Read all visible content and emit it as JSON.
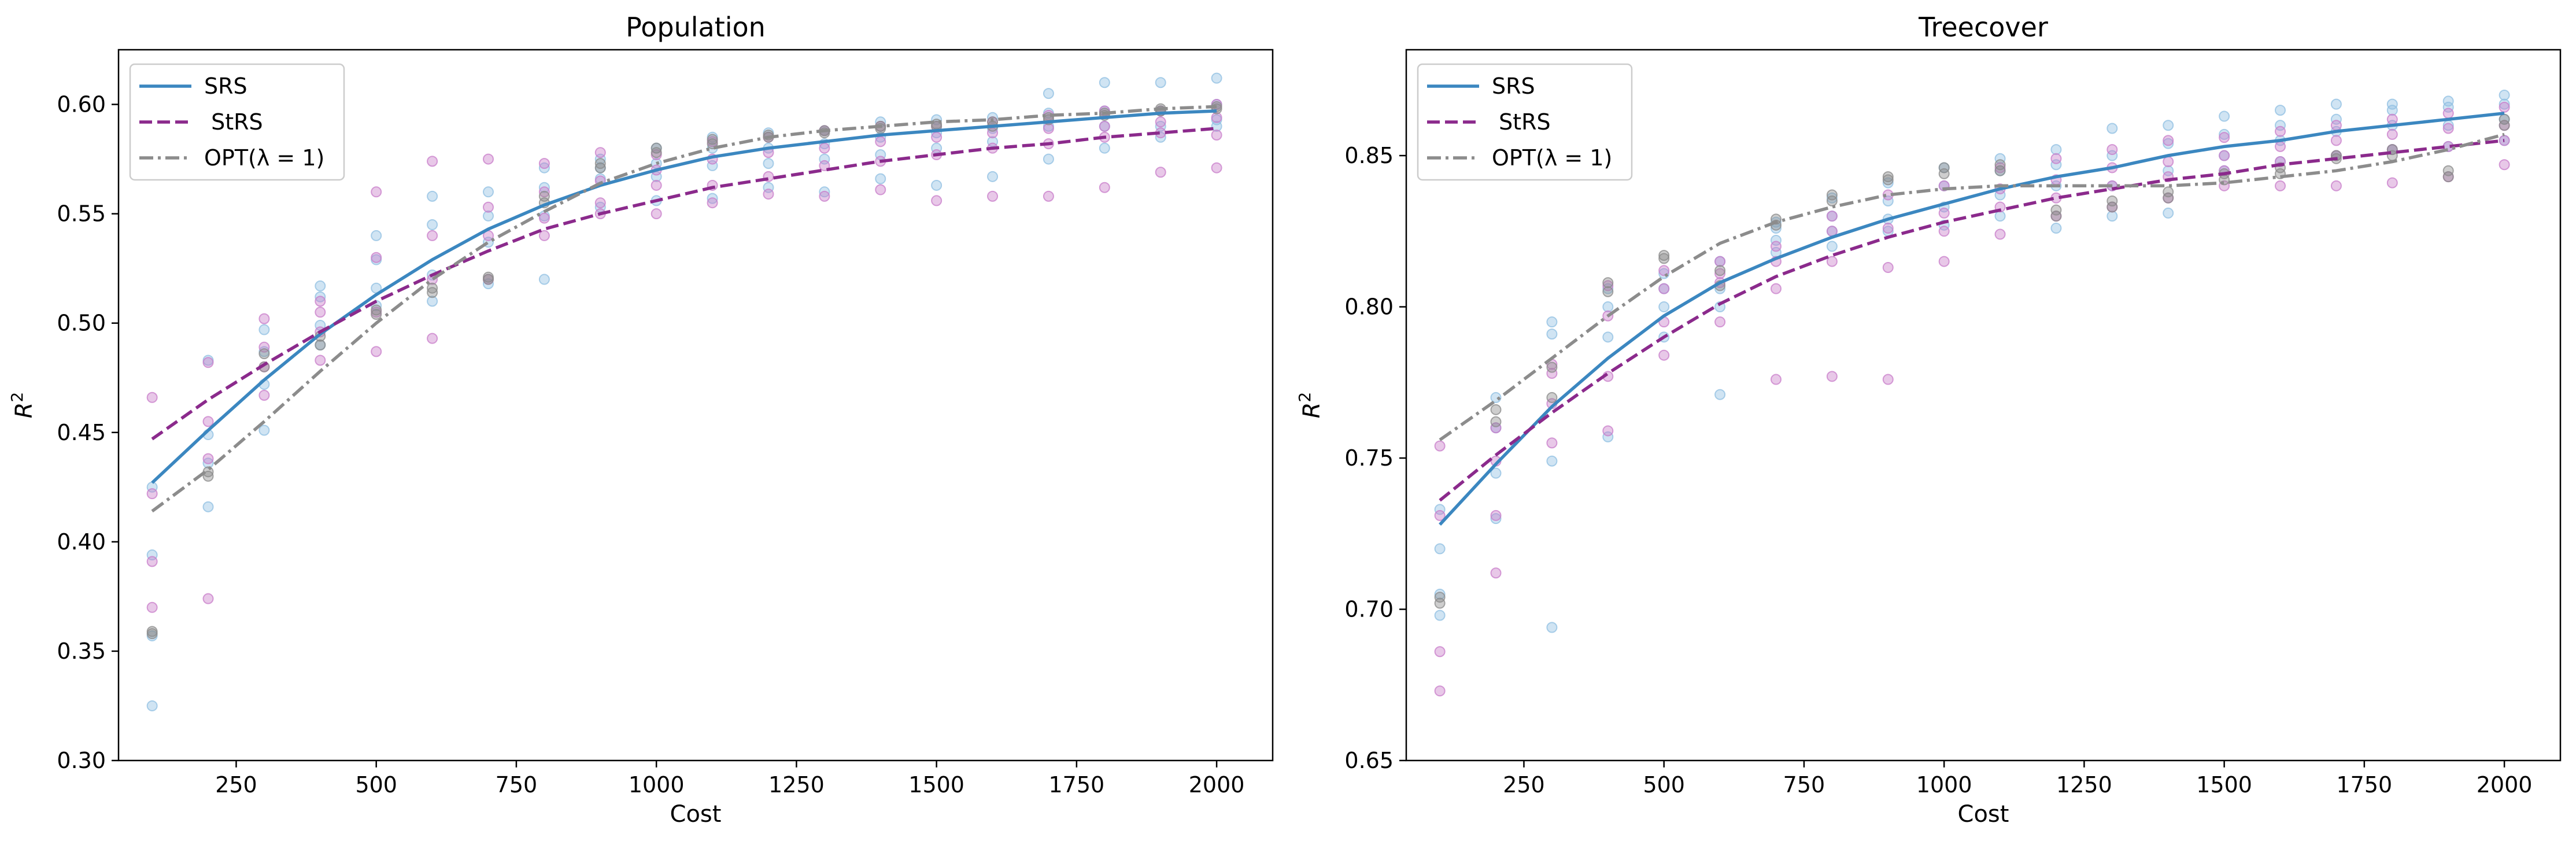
{
  "chart_data": [
    {
      "type": "scatter",
      "title": "Population",
      "xlabel": "Cost",
      "ylabel_base": "R",
      "ylabel_sup": "2",
      "xlim": [
        40,
        2100
      ],
      "ylim": [
        0.3,
        0.625
      ],
      "xticks": [
        250,
        500,
        750,
        1000,
        1250,
        1500,
        1750,
        2000
      ],
      "xtick_labels": [
        "250",
        "500",
        "750",
        "1000",
        "1250",
        "1500",
        "1750",
        "2000"
      ],
      "yticks": [
        0.3,
        0.35,
        0.4,
        0.45,
        0.5,
        0.55,
        0.6
      ],
      "ytick_labels": [
        "0.30",
        "0.35",
        "0.40",
        "0.45",
        "0.50",
        "0.55",
        "0.60"
      ],
      "legend_position": "top-left",
      "grid": false,
      "series": [
        {
          "name": "SRS",
          "style": "solid",
          "color": "#3b87c0",
          "point_color": "#8fbfe2",
          "x": [
            100,
            200,
            300,
            400,
            500,
            600,
            700,
            800,
            900,
            1000,
            1100,
            1200,
            1300,
            1400,
            1500,
            1600,
            1700,
            1800,
            1900,
            2000
          ],
          "fit": [
            0.427,
            0.451,
            0.474,
            0.495,
            0.513,
            0.529,
            0.543,
            0.554,
            0.563,
            0.57,
            0.576,
            0.58,
            0.583,
            0.586,
            0.588,
            0.59,
            0.592,
            0.594,
            0.596,
            0.597
          ],
          "points": [
            [
              0.325,
              0.357,
              0.394,
              0.425
            ],
            [
              0.416,
              0.436,
              0.449,
              0.483
            ],
            [
              0.451,
              0.472,
              0.487,
              0.497
            ],
            [
              0.49,
              0.499,
              0.512,
              0.517
            ],
            [
              0.508,
              0.516,
              0.529,
              0.54
            ],
            [
              0.51,
              0.522,
              0.545,
              0.558
            ],
            [
              0.518,
              0.537,
              0.549,
              0.56
            ],
            [
              0.52,
              0.549,
              0.562,
              0.571
            ],
            [
              0.553,
              0.566,
              0.571,
              0.575
            ],
            [
              0.556,
              0.567,
              0.573,
              0.58
            ],
            [
              0.557,
              0.572,
              0.58,
              0.585
            ],
            [
              0.562,
              0.573,
              0.58,
              0.587
            ],
            [
              0.56,
              0.575,
              0.582,
              0.588
            ],
            [
              0.566,
              0.577,
              0.585,
              0.592
            ],
            [
              0.563,
              0.58,
              0.587,
              0.593
            ],
            [
              0.567,
              0.583,
              0.589,
              0.594
            ],
            [
              0.575,
              0.59,
              0.596,
              0.605
            ],
            [
              0.58,
              0.59,
              0.597,
              0.61
            ],
            [
              0.585,
              0.59,
              0.597,
              0.61
            ],
            [
              0.59,
              0.593,
              0.6,
              0.612
            ]
          ]
        },
        {
          "name": " StRS",
          "style": "dashed",
          "color": "#8b2a8c",
          "point_color": "#c87cc9",
          "x": [
            100,
            200,
            300,
            400,
            500,
            600,
            700,
            800,
            900,
            1000,
            1100,
            1200,
            1300,
            1400,
            1500,
            1600,
            1700,
            1800,
            1900,
            2000
          ],
          "fit": [
            0.447,
            0.465,
            0.481,
            0.496,
            0.51,
            0.522,
            0.533,
            0.543,
            0.55,
            0.556,
            0.562,
            0.566,
            0.57,
            0.574,
            0.577,
            0.58,
            0.582,
            0.585,
            0.587,
            0.589
          ],
          "points": [
            [
              0.37,
              0.391,
              0.422,
              0.466
            ],
            [
              0.374,
              0.438,
              0.455,
              0.482
            ],
            [
              0.467,
              0.48,
              0.489,
              0.502
            ],
            [
              0.483,
              0.496,
              0.505,
              0.51
            ],
            [
              0.487,
              0.505,
              0.53,
              0.56
            ],
            [
              0.493,
              0.52,
              0.54,
              0.574
            ],
            [
              0.52,
              0.54,
              0.553,
              0.575
            ],
            [
              0.54,
              0.548,
              0.56,
              0.573
            ],
            [
              0.55,
              0.555,
              0.565,
              0.578
            ],
            [
              0.55,
              0.563,
              0.57,
              0.577
            ],
            [
              0.555,
              0.563,
              0.575,
              0.583
            ],
            [
              0.559,
              0.567,
              0.578,
              0.585
            ],
            [
              0.558,
              0.572,
              0.58,
              0.588
            ],
            [
              0.561,
              0.574,
              0.583,
              0.59
            ],
            [
              0.556,
              0.577,
              0.585,
              0.59
            ],
            [
              0.558,
              0.58,
              0.587,
              0.592
            ],
            [
              0.558,
              0.582,
              0.589,
              0.595
            ],
            [
              0.562,
              0.585,
              0.59,
              0.597
            ],
            [
              0.569,
              0.587,
              0.592,
              0.597
            ],
            [
              0.571,
              0.586,
              0.594,
              0.6
            ]
          ]
        },
        {
          "name": "OPT(λ = 1)",
          "style": "dashdot",
          "color": "#8c8c8c",
          "point_color": "#8a8a8a",
          "x": [
            100,
            200,
            300,
            400,
            500,
            600,
            700,
            800,
            900,
            1000,
            1100,
            1200,
            1300,
            1400,
            1500,
            1600,
            1700,
            1800,
            1900,
            2000
          ],
          "fit": [
            0.414,
            0.433,
            0.455,
            0.478,
            0.5,
            0.52,
            0.537,
            0.551,
            0.564,
            0.573,
            0.58,
            0.585,
            0.588,
            0.59,
            0.592,
            0.593,
            0.595,
            0.596,
            0.598,
            0.599
          ],
          "points": [
            [
              0.358,
              0.359
            ],
            [
              0.43,
              0.432
            ],
            [
              0.48,
              0.486
            ],
            [
              0.49,
              0.494
            ],
            [
              0.504,
              0.506
            ],
            [
              0.514,
              0.516
            ],
            [
              0.52,
              0.521
            ],
            [
              0.555,
              0.558
            ],
            [
              0.571,
              0.573
            ],
            [
              0.578,
              0.58
            ],
            [
              0.582,
              0.584
            ],
            [
              0.585,
              0.586
            ],
            [
              0.587,
              0.588
            ],
            [
              0.589,
              0.59
            ],
            [
              0.59,
              0.591
            ],
            [
              0.59,
              0.592
            ],
            [
              0.593,
              0.594
            ],
            [
              0.595,
              0.596
            ],
            [
              0.597,
              0.598
            ],
            [
              0.598,
              0.599
            ]
          ]
        }
      ]
    },
    {
      "type": "scatter",
      "title": "Treecover",
      "xlabel": "Cost",
      "ylabel_base": "R",
      "ylabel_sup": "2",
      "xlim": [
        40,
        2100
      ],
      "ylim": [
        0.65,
        0.885
      ],
      "xticks": [
        250,
        500,
        750,
        1000,
        1250,
        1500,
        1750,
        2000
      ],
      "xtick_labels": [
        "250",
        "500",
        "750",
        "1000",
        "1250",
        "1500",
        "1750",
        "2000"
      ],
      "yticks": [
        0.65,
        0.7,
        0.75,
        0.8,
        0.85
      ],
      "ytick_labels": [
        "0.65",
        "0.70",
        "0.75",
        "0.80",
        "0.85"
      ],
      "legend_position": "top-left",
      "grid": false,
      "series": [
        {
          "name": "SRS",
          "style": "solid",
          "color": "#3b87c0",
          "point_color": "#8fbfe2",
          "x": [
            100,
            200,
            300,
            400,
            500,
            600,
            700,
            800,
            900,
            1000,
            1100,
            1200,
            1300,
            1400,
            1500,
            1600,
            1700,
            1800,
            1900,
            2000
          ],
          "fit": [
            0.728,
            0.748,
            0.767,
            0.783,
            0.797,
            0.808,
            0.816,
            0.823,
            0.829,
            0.834,
            0.839,
            0.843,
            0.846,
            0.85,
            0.853,
            0.855,
            0.858,
            0.86,
            0.862,
            0.864
          ],
          "points": [
            [
              0.698,
              0.705,
              0.72,
              0.733
            ],
            [
              0.73,
              0.745,
              0.76,
              0.77
            ],
            [
              0.694,
              0.749,
              0.791,
              0.795
            ],
            [
              0.757,
              0.79,
              0.8,
              0.806
            ],
            [
              0.79,
              0.8,
              0.806,
              0.811
            ],
            [
              0.771,
              0.8,
              0.806,
              0.815
            ],
            [
              0.818,
              0.822,
              0.826,
              0.828
            ],
            [
              0.82,
              0.825,
              0.83,
              0.836
            ],
            [
              0.825,
              0.829,
              0.835,
              0.841
            ],
            [
              0.827,
              0.833,
              0.84,
              0.846
            ],
            [
              0.83,
              0.837,
              0.845,
              0.849
            ],
            [
              0.826,
              0.84,
              0.847,
              0.852
            ],
            [
              0.83,
              0.84,
              0.85,
              0.859
            ],
            [
              0.831,
              0.845,
              0.854,
              0.86
            ],
            [
              0.845,
              0.85,
              0.857,
              0.863
            ],
            [
              0.848,
              0.855,
              0.86,
              0.865
            ],
            [
              0.85,
              0.858,
              0.862,
              0.867
            ],
            [
              0.852,
              0.86,
              0.865,
              0.867
            ],
            [
              0.853,
              0.86,
              0.866,
              0.868
            ],
            [
              0.855,
              0.862,
              0.867,
              0.87
            ]
          ]
        },
        {
          "name": " StRS",
          "style": "dashed",
          "color": "#8b2a8c",
          "point_color": "#c87cc9",
          "x": [
            100,
            200,
            300,
            400,
            500,
            600,
            700,
            800,
            900,
            1000,
            1100,
            1200,
            1300,
            1400,
            1500,
            1600,
            1700,
            1800,
            1900,
            2000
          ],
          "fit": [
            0.736,
            0.751,
            0.765,
            0.778,
            0.79,
            0.801,
            0.81,
            0.817,
            0.823,
            0.828,
            0.832,
            0.836,
            0.839,
            0.842,
            0.844,
            0.847,
            0.849,
            0.851,
            0.853,
            0.855
          ],
          "points": [
            [
              0.673,
              0.686,
              0.731,
              0.754
            ],
            [
              0.712,
              0.731,
              0.749,
              0.76
            ],
            [
              0.755,
              0.768,
              0.778,
              0.781
            ],
            [
              0.759,
              0.777,
              0.797,
              0.807
            ],
            [
              0.784,
              0.795,
              0.806,
              0.812
            ],
            [
              0.795,
              0.808,
              0.811,
              0.815
            ],
            [
              0.776,
              0.806,
              0.815,
              0.82
            ],
            [
              0.777,
              0.815,
              0.825,
              0.83
            ],
            [
              0.776,
              0.813,
              0.826,
              0.837
            ],
            [
              0.815,
              0.825,
              0.831,
              0.84
            ],
            [
              0.824,
              0.833,
              0.839,
              0.846
            ],
            [
              0.83,
              0.836,
              0.842,
              0.849
            ],
            [
              0.833,
              0.84,
              0.846,
              0.852
            ],
            [
              0.836,
              0.843,
              0.848,
              0.855
            ],
            [
              0.84,
              0.845,
              0.85,
              0.856
            ],
            [
              0.84,
              0.848,
              0.853,
              0.858
            ],
            [
              0.84,
              0.85,
              0.855,
              0.86
            ],
            [
              0.841,
              0.852,
              0.857,
              0.862
            ],
            [
              0.843,
              0.853,
              0.859,
              0.864
            ],
            [
              0.847,
              0.855,
              0.86,
              0.866
            ]
          ]
        },
        {
          "name": "OPT(λ = 1)",
          "style": "dashdot",
          "color": "#8c8c8c",
          "point_color": "#8a8a8a",
          "x": [
            100,
            200,
            300,
            400,
            500,
            600,
            700,
            800,
            900,
            1000,
            1100,
            1200,
            1300,
            1400,
            1500,
            1600,
            1700,
            1800,
            1900,
            2000
          ],
          "fit": [
            0.756,
            0.769,
            0.783,
            0.797,
            0.81,
            0.821,
            0.828,
            0.833,
            0.837,
            0.839,
            0.84,
            0.84,
            0.84,
            0.84,
            0.841,
            0.843,
            0.845,
            0.848,
            0.852,
            0.857
          ],
          "points": [
            [
              0.702,
              0.704
            ],
            [
              0.762,
              0.766
            ],
            [
              0.77,
              0.78
            ],
            [
              0.805,
              0.808
            ],
            [
              0.816,
              0.817
            ],
            [
              0.807,
              0.812
            ],
            [
              0.827,
              0.829
            ],
            [
              0.835,
              0.837
            ],
            [
              0.842,
              0.843
            ],
            [
              0.844,
              0.846
            ],
            [
              0.845,
              0.847
            ],
            [
              0.83,
              0.832
            ],
            [
              0.833,
              0.835
            ],
            [
              0.836,
              0.838
            ],
            [
              0.842,
              0.844
            ],
            [
              0.844,
              0.846
            ],
            [
              0.849,
              0.85
            ],
            [
              0.85,
              0.852
            ],
            [
              0.843,
              0.845
            ],
            [
              0.86,
              0.862
            ]
          ]
        }
      ]
    }
  ]
}
